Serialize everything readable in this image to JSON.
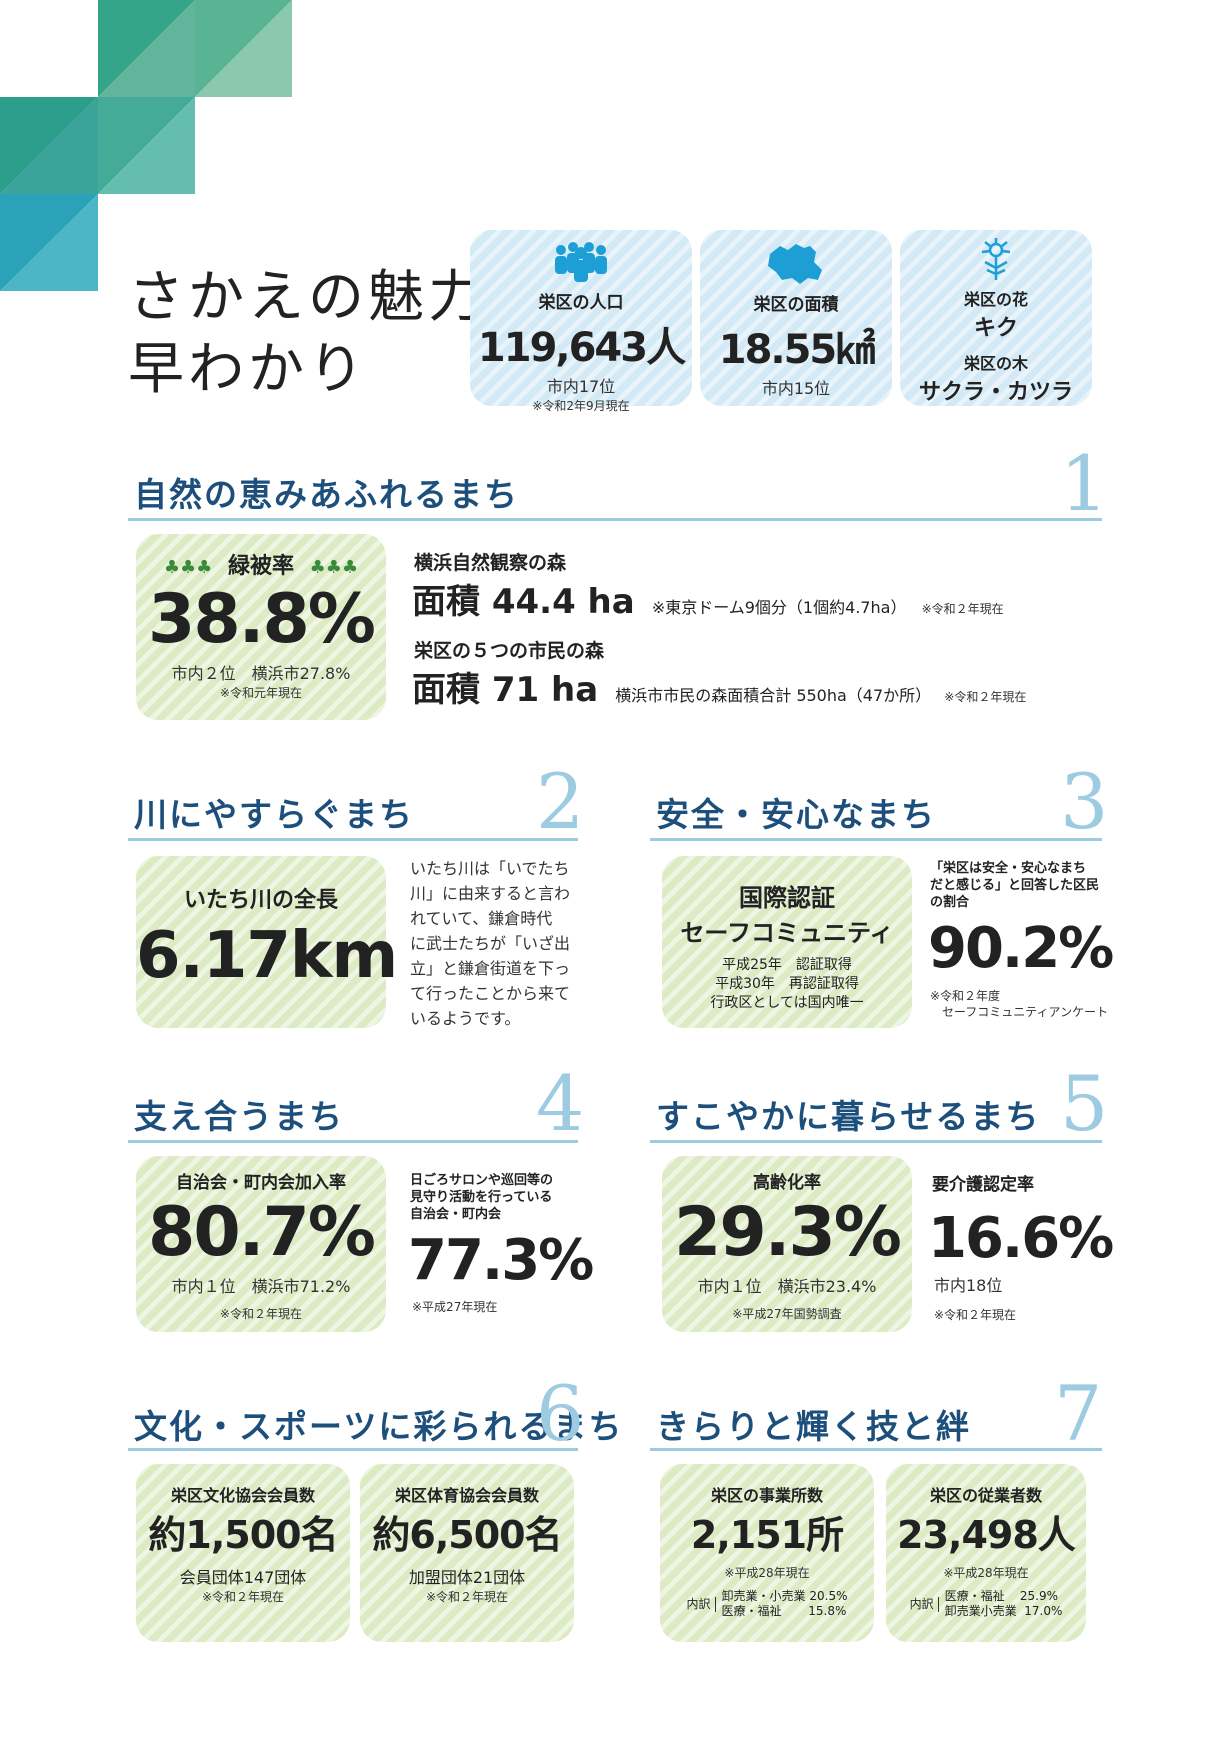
{
  "header": {
    "title_line1": "さかえの魅力",
    "title_line2": "早わかり"
  },
  "stats": {
    "population": {
      "icon": "people-icon",
      "label": "栄区の人口",
      "value": "119,643人",
      "rank": "市内17位",
      "note": "※令和2年9月現在"
    },
    "area": {
      "icon": "map-icon",
      "label": "栄区の面積",
      "value": "18.55㎢",
      "rank": "市内15位"
    },
    "symbols": {
      "icon": "chrysanthemum-icon",
      "flower_label": "栄区の花",
      "flower": "キク",
      "tree_label": "栄区の木",
      "tree": "サクラ・カツラ"
    }
  },
  "sec1": {
    "title": "自然の恵みあふれるまち",
    "num": "1",
    "green": {
      "label": "緑被率",
      "value": "38.8%",
      "rank": "市内２位　横浜市27.8%",
      "note": "※令和元年現在"
    },
    "forest1": {
      "title": "横浜自然観察の森",
      "value": "面積 44.4 ha",
      "desc": "※東京ドーム9個分（1個約4.7ha）",
      "note": "※令和２年現在"
    },
    "forest2": {
      "title": "栄区の５つの市民の森",
      "value": "面積 71 ha",
      "desc": "横浜市市民の森面積合計 550ha（47か所）",
      "note": "※令和２年現在"
    }
  },
  "sec2": {
    "title": "川にやすらぐまち",
    "num": "2",
    "label": "いたち川の全長",
    "value": "6.17km",
    "text": [
      "いたち川は「いでたち",
      "川」に由来すると言わ",
      "れていて、鎌倉時代",
      "に武士たちが「いざ出",
      "立」と鎌倉街道を下っ",
      "て行ったことから来て",
      "いるようです。"
    ]
  },
  "sec3": {
    "title": "安全・安心なまち",
    "num": "3",
    "cert1": "国際認証",
    "cert2": "セーフコミュニティ",
    "lines": [
      "平成25年　認証取得",
      "平成30年　再認証取得",
      "行政区としては国内唯一"
    ],
    "q": [
      "「栄区は安全・安心なまち",
      "だと感じる」と回答した区民",
      "の割合"
    ],
    "value": "90.2%",
    "note1": "※令和２年度",
    "note2": "セーフコミュニティアンケート"
  },
  "sec4": {
    "title": "支え合うまち",
    "num": "4",
    "label": "自治会・町内会加入率",
    "value": "80.7%",
    "rank": "市内１位　横浜市71.2%",
    "note": "※令和２年現在",
    "sub": [
      "日ごろサロンや巡回等の",
      "見守り活動を行っている",
      "自治会・町内会"
    ],
    "subvalue": "77.3%",
    "subnote": "※平成27年現在"
  },
  "sec5": {
    "title": "すこやかに暮らせるまち",
    "num": "5",
    "label": "高齢化率",
    "value": "29.3%",
    "rank": "市内１位　横浜市23.4%",
    "note": "※平成27年国勢調査",
    "label2": "要介護認定率",
    "value2": "16.6%",
    "rank2": "市内18位",
    "note2": "※令和２年現在"
  },
  "sec6": {
    "title": "文化・スポーツに彩られるまち",
    "num": "6",
    "culture": {
      "label": "栄区文化協会会員数",
      "value": "約1,500名",
      "sub": "会員団体147団体",
      "note": "※令和２年現在"
    },
    "sports": {
      "label": "栄区体育協会会員数",
      "value": "約6,500名",
      "sub": "加盟団体21団体",
      "note": "※令和２年現在"
    }
  },
  "sec7": {
    "title": "きらりと輝く技と絆",
    "num": "7",
    "biz": {
      "label": "栄区の事業所数",
      "value": "2,151所",
      "note": "※平成28年現在",
      "breakdown": "内訳",
      "r1": "卸売業・小売業",
      "v1": "20.5%",
      "r2": "医療・福祉",
      "v2": "15.8%"
    },
    "emp": {
      "label": "栄区の従業者数",
      "value": "23,498人",
      "note": "※平成28年現在",
      "breakdown": "内訳",
      "r1": "医療・福祉",
      "v1": "25.9%",
      "r2": "卸売業小売業",
      "v2": "17.0%"
    }
  }
}
